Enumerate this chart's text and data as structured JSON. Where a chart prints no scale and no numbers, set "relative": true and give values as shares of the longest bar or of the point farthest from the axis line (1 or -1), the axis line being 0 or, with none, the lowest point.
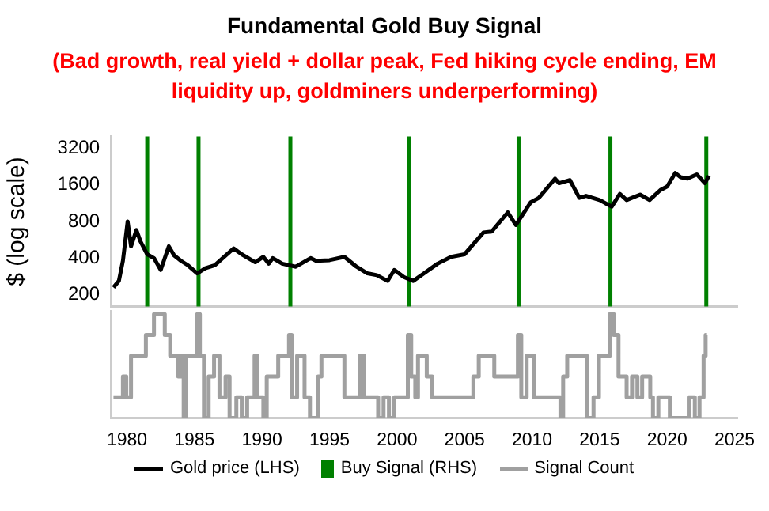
{
  "chart_data": [
    {
      "type": "line",
      "title": "Fundamental Gold Buy Signal",
      "subtitle": "(Bad growth, real yield + dollar peak, Fed hiking cycle ending, EM liquidity up, goldminers underperforming)",
      "ylabel": "$ (log scale)",
      "log": true,
      "ylim": [
        160,
        4000
      ],
      "yticks": [
        200,
        400,
        800,
        1600,
        3200
      ],
      "xlim": [
        1978.8,
        2025.2
      ],
      "tick_labels": "y",
      "grid": false,
      "legend": "bottom",
      "series": [
        {
          "name": "Gold price (LHS)",
          "color": "#000000",
          "x": [
            1979.0,
            1979.4,
            1979.7,
            1980.05,
            1980.3,
            1980.7,
            1981.0,
            1981.5,
            1982.0,
            1982.5,
            1983.1,
            1983.5,
            1984.0,
            1984.5,
            1985.2,
            1985.8,
            1986.5,
            1987.3,
            1987.9,
            1988.5,
            1989.5,
            1990.1,
            1990.5,
            1990.8,
            1991.5,
            1992.5,
            1993.6,
            1994.0,
            1995.0,
            1996.1,
            1997.0,
            1997.8,
            1998.5,
            1999.3,
            1999.8,
            2000.5,
            2001.2,
            2002.0,
            2003.0,
            2004.0,
            2005.0,
            2006.4,
            2007.0,
            2008.2,
            2008.8,
            2009.9,
            2010.5,
            2011.7,
            2012.0,
            2012.8,
            2013.5,
            2014.0,
            2015.0,
            2015.9,
            2016.5,
            2017.0,
            2018.0,
            2018.7,
            2019.5,
            2020.0,
            2020.6,
            2021.0,
            2021.5,
            2022.2,
            2022.8,
            2023.1
          ],
          "values": [
            230,
            260,
            380,
            800,
            500,
            680,
            550,
            430,
            400,
            320,
            500,
            420,
            380,
            350,
            300,
            330,
            350,
            420,
            480,
            430,
            370,
            410,
            360,
            400,
            360,
            340,
            400,
            380,
            385,
            410,
            340,
            300,
            290,
            260,
            320,
            280,
            260,
            300,
            360,
            410,
            430,
            650,
            660,
            950,
            750,
            1150,
            1250,
            1800,
            1650,
            1750,
            1250,
            1300,
            1200,
            1060,
            1350,
            1200,
            1330,
            1200,
            1450,
            1550,
            2000,
            1850,
            1800,
            1950,
            1650,
            1900
          ]
        }
      ],
      "ref_lines": [
        {
          "axis": "x",
          "value": 1981.5,
          "label": "Buy Signal (RHS)",
          "color": "#008000"
        },
        {
          "axis": "x",
          "value": 1985.3,
          "color": "#008000"
        },
        {
          "axis": "x",
          "value": 1992.1,
          "color": "#008000"
        },
        {
          "axis": "x",
          "value": 2000.9,
          "color": "#008000"
        },
        {
          "axis": "x",
          "value": 2009.0,
          "color": "#008000"
        },
        {
          "axis": "x",
          "value": 2015.8,
          "color": "#008000"
        },
        {
          "axis": "x",
          "value": 2022.9,
          "color": "#008000"
        }
      ]
    },
    {
      "type": "step",
      "relative": true,
      "xlim": [
        1978.8,
        2025.2
      ],
      "xticks": [
        1980,
        1985,
        1990,
        1995,
        2000,
        2005,
        2010,
        2015,
        2020,
        2025
      ],
      "tick_labels": "x",
      "grid": false,
      "legend": "bottom",
      "series": [
        {
          "name": "Signal Count",
          "color": "#a0a0a0",
          "x": [
            1979.0,
            1979.7,
            1979.95,
            1980.3,
            1981.4,
            1982.0,
            1982.8,
            1983.2,
            1983.8,
            1984.0,
            1984.2,
            1984.35,
            1985.0,
            1985.2,
            1985.4,
            1985.7,
            1986.05,
            1986.45,
            1986.85,
            1987.3,
            1987.6,
            1988.1,
            1988.5,
            1988.9,
            1989.45,
            1989.65,
            1990.1,
            1990.35,
            1991.2,
            1992.0,
            1992.2,
            1992.6,
            1993.15,
            1993.55,
            1994.15,
            1994.4,
            1996.1,
            1997.25,
            1997.55,
            1998.6,
            1999.0,
            1999.4,
            1999.8,
            2000.8,
            2001.05,
            2001.35,
            2001.55,
            2002.2,
            2002.6,
            2005.65,
            2006.05,
            2007.2,
            2008.8,
            2008.95,
            2009.2,
            2009.6,
            2010.15,
            2012.1,
            2012.3,
            2012.6,
            2014.05,
            2014.55,
            2014.95,
            2015.75,
            2016.05,
            2016.4,
            2017.0,
            2017.4,
            2017.8,
            2018.15,
            2018.75,
            2018.95,
            2019.35,
            2020.2,
            2021.6,
            2022.05,
            2022.4,
            2022.7,
            2022.85,
            2022.95
          ],
          "values": [
            0.2,
            0.4,
            0.2,
            0.6,
            0.8,
            1,
            0.8,
            0.6,
            0.4,
            0.6,
            0,
            0.6,
            0.6,
            1,
            0.6,
            0,
            0.4,
            0.6,
            0.2,
            0.4,
            0,
            0.2,
            0,
            0.2,
            0.6,
            0.2,
            0,
            0.4,
            0.6,
            0.8,
            0.2,
            0.6,
            0.2,
            0,
            0.4,
            0.6,
            0.2,
            0.6,
            0.2,
            0,
            0.2,
            0,
            0.2,
            0.8,
            0.4,
            0.2,
            0.6,
            0.4,
            0.2,
            0.4,
            0.6,
            0.4,
            0.4,
            0.8,
            0.2,
            0.6,
            0.2,
            0,
            0.4,
            0.6,
            0,
            0.2,
            0.6,
            1,
            0.8,
            0.4,
            0.2,
            0.4,
            0.2,
            0.4,
            0.2,
            0,
            0.2,
            0,
            0.2,
            0,
            0.2,
            0.6,
            0.8,
            0.8
          ]
        }
      ]
    }
  ]
}
